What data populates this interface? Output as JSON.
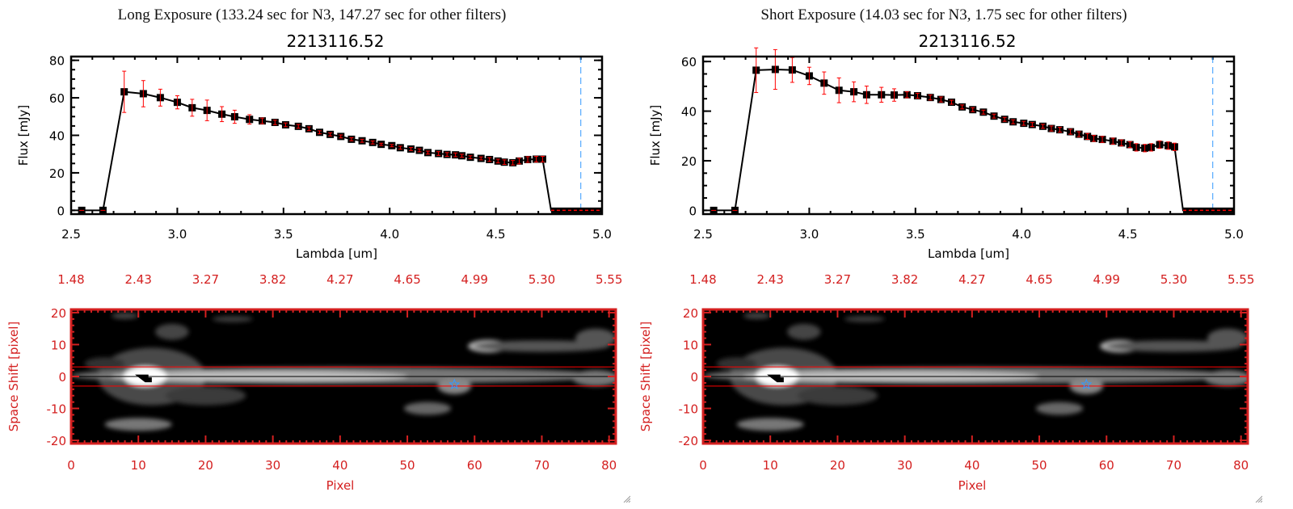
{
  "panels": [
    {
      "title": "Long Exposure (133.24 sec for N3, 147.27 sec for other filters)",
      "object_id": "2213116.52"
    },
    {
      "title": "Short Exposure (14.03 sec for N3, 1.75 sec for other filters)",
      "object_id": "2213116.52"
    }
  ],
  "colors": {
    "marker": "#000000",
    "error_bar": "#ff0000",
    "image_axis": "#d42020",
    "cutoff_line": "#3399ff",
    "aperture_line": "#ff0000"
  },
  "chart_data": [
    {
      "type": "line",
      "title": "2213116.52",
      "xlabel": "Lambda [um]",
      "ylabel": "Flux [mJy]",
      "xlim": [
        2.5,
        5.0
      ],
      "ylim": [
        -2,
        82
      ],
      "xticks": [
        "2.5",
        "3.0",
        "3.5",
        "4.0",
        "4.5",
        "5.0"
      ],
      "yticks": [
        "0",
        "20",
        "40",
        "60",
        "80"
      ],
      "cutoff_x": 4.9,
      "zero_segment": [
        4.76,
        5.0
      ],
      "x": [
        2.55,
        2.65,
        2.75,
        2.84,
        2.92,
        3.0,
        3.07,
        3.14,
        3.21,
        3.27,
        3.34,
        3.4,
        3.46,
        3.51,
        3.57,
        3.62,
        3.67,
        3.72,
        3.77,
        3.82,
        3.87,
        3.92,
        3.96,
        4.01,
        4.05,
        4.1,
        4.14,
        4.18,
        4.23,
        4.27,
        4.31,
        4.34,
        4.38,
        4.43,
        4.47,
        4.51,
        4.54,
        4.58,
        4.61,
        4.65,
        4.69,
        4.72
      ],
      "y": [
        0,
        0,
        63.2,
        62.2,
        60.1,
        57.6,
        54.7,
        53.3,
        51.3,
        49.9,
        48.5,
        47.7,
        46.9,
        45.6,
        44.8,
        43.5,
        41.6,
        40.5,
        39.4,
        37.9,
        37.1,
        36.2,
        35.2,
        34.5,
        33.4,
        32.7,
        32.0,
        30.8,
        30.3,
        29.8,
        29.6,
        29.1,
        28.3,
        27.7,
        27.1,
        26.3,
        25.7,
        25.4,
        26.3,
        27.1,
        27.3,
        27.3
      ],
      "yerr": [
        0,
        0,
        11,
        7,
        4.5,
        3.5,
        4.5,
        5.5,
        4,
        3.5,
        2.5,
        1.5,
        1.2,
        1,
        1,
        1,
        0.8,
        0.8,
        0.8,
        0.8,
        0.8,
        0.8,
        0.6,
        0.6,
        0.8,
        0.8,
        0.8,
        0.8,
        1,
        1,
        1,
        0.8,
        0.8,
        0.8,
        1,
        1,
        1.2,
        1.2,
        1.5,
        1.5,
        1.5,
        1.5
      ]
    },
    {
      "type": "heatmap",
      "xlabel": "Pixel",
      "ylabel": "Space Shift [pixel]",
      "xlim": [
        0,
        81
      ],
      "ylim": [
        -21,
        21
      ],
      "xticks": [
        "0",
        "10",
        "20",
        "30",
        "40",
        "50",
        "60",
        "70",
        "80"
      ],
      "top_xticks": [
        "1.48",
        "2.43",
        "3.27",
        "3.82",
        "4.27",
        "4.65",
        "4.99",
        "5.30",
        "5.55"
      ],
      "yticks": [
        "-20",
        "-10",
        "0",
        "10",
        "20"
      ],
      "aperture": [
        -3,
        3
      ],
      "source_marker": [
        57,
        -2.5
      ]
    },
    {
      "type": "line",
      "title": "2213116.52",
      "xlabel": "Lambda [um]",
      "ylabel": "Flux [mJy]",
      "xlim": [
        2.5,
        5.0
      ],
      "ylim": [
        -1.5,
        62
      ],
      "xticks": [
        "2.5",
        "3.0",
        "3.5",
        "4.0",
        "4.5",
        "5.0"
      ],
      "yticks": [
        "0",
        "20",
        "40",
        "60"
      ],
      "cutoff_x": 4.9,
      "zero_segment": [
        4.76,
        5.0
      ],
      "x": [
        2.55,
        2.65,
        2.75,
        2.84,
        2.92,
        3.0,
        3.07,
        3.14,
        3.21,
        3.27,
        3.34,
        3.4,
        3.46,
        3.51,
        3.57,
        3.62,
        3.67,
        3.72,
        3.77,
        3.82,
        3.87,
        3.92,
        3.96,
        4.01,
        4.05,
        4.1,
        4.14,
        4.18,
        4.23,
        4.27,
        4.31,
        4.34,
        4.38,
        4.43,
        4.47,
        4.51,
        4.54,
        4.58,
        4.61,
        4.65,
        4.69,
        4.72
      ],
      "y": [
        0,
        0,
        56.5,
        56.8,
        56.6,
        54.2,
        51.3,
        48.4,
        47.8,
        46.6,
        46.6,
        46.5,
        46.6,
        46.2,
        45.5,
        44.7,
        43.6,
        41.7,
        40.6,
        39.6,
        38.0,
        36.7,
        35.7,
        35.1,
        34.6,
        33.9,
        33.0,
        32.5,
        31.7,
        30.7,
        29.8,
        29.0,
        28.6,
        27.9,
        27.2,
        26.5,
        25.4,
        25.1,
        25.4,
        26.5,
        26.1,
        25.6
      ],
      "yerr": [
        0,
        0,
        9,
        8,
        5,
        3.5,
        4.5,
        5,
        4,
        3.5,
        3,
        2.5,
        1.2,
        1,
        1,
        1,
        0.8,
        0.8,
        0.8,
        0.8,
        0.8,
        0.8,
        0.8,
        0.8,
        0.8,
        0.8,
        1,
        1,
        1,
        1,
        1.2,
        1.2,
        1.2,
        1.2,
        1.2,
        1.2,
        1.5,
        1.5,
        1.5,
        1.5,
        1.5,
        1.5
      ]
    },
    {
      "type": "heatmap",
      "xlabel": "Pixel",
      "ylabel": "Space Shift [pixel]",
      "xlim": [
        0,
        81
      ],
      "ylim": [
        -21,
        21
      ],
      "xticks": [
        "0",
        "10",
        "20",
        "30",
        "40",
        "50",
        "60",
        "70",
        "80"
      ],
      "top_xticks": [
        "1.48",
        "2.43",
        "3.27",
        "3.82",
        "4.27",
        "4.65",
        "4.99",
        "5.30",
        "5.55"
      ],
      "yticks": [
        "-20",
        "-10",
        "0",
        "10",
        "20"
      ],
      "aperture": [
        -3,
        3
      ],
      "source_marker": [
        57,
        -2.5
      ]
    }
  ]
}
